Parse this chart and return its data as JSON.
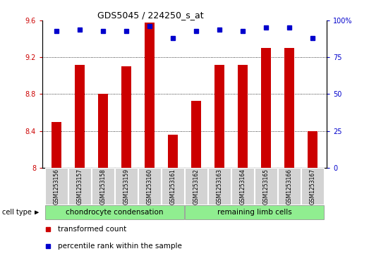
{
  "title": "GDS5045 / 224250_s_at",
  "samples": [
    "GSM1253156",
    "GSM1253157",
    "GSM1253158",
    "GSM1253159",
    "GSM1253160",
    "GSM1253161",
    "GSM1253162",
    "GSM1253163",
    "GSM1253164",
    "GSM1253165",
    "GSM1253166",
    "GSM1253167"
  ],
  "bar_values": [
    8.5,
    9.12,
    8.8,
    9.1,
    9.58,
    8.36,
    8.73,
    9.12,
    9.12,
    9.3,
    9.3,
    8.4
  ],
  "percentile_values": [
    93,
    94,
    93,
    93,
    96,
    88,
    93,
    94,
    93,
    95,
    95,
    88
  ],
  "bar_color": "#cc0000",
  "dot_color": "#0000cc",
  "ylim_left": [
    8.0,
    9.6
  ],
  "ylim_right": [
    0,
    100
  ],
  "yticks_left": [
    8.0,
    8.4,
    8.8,
    9.2,
    9.6
  ],
  "ytick_labels_left": [
    "8",
    "8.4",
    "8.8",
    "9.2",
    "9.6"
  ],
  "yticks_right": [
    0,
    25,
    50,
    75,
    100
  ],
  "ytick_labels_right": [
    "0",
    "25",
    "50",
    "75",
    "100%"
  ],
  "grid_values": [
    8.4,
    8.8,
    9.2
  ],
  "cell_groups": [
    {
      "label": "chondrocyte condensation",
      "indices": [
        0,
        1,
        2,
        3,
        4,
        5
      ],
      "color": "#90ee90"
    },
    {
      "label": "remaining limb cells",
      "indices": [
        6,
        7,
        8,
        9,
        10,
        11
      ],
      "color": "#90ee90"
    }
  ],
  "cell_type_label": "cell type",
  "legend_bar_label": "transformed count",
  "legend_dot_label": "percentile rank within the sample",
  "bar_width": 0.45,
  "background_color": "#ffffff",
  "sample_box_color": "#d3d3d3",
  "title_fontsize": 9,
  "axis_fontsize": 7,
  "legend_fontsize": 7.5
}
